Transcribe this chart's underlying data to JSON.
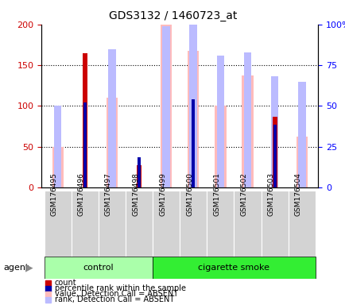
{
  "title": "GDS3132 / 1460723_at",
  "samples": [
    "GSM176495",
    "GSM176496",
    "GSM176497",
    "GSM176498",
    "GSM176499",
    "GSM176500",
    "GSM176501",
    "GSM176502",
    "GSM176503",
    "GSM176504"
  ],
  "count": [
    0,
    165,
    0,
    27,
    0,
    0,
    0,
    0,
    87,
    0
  ],
  "percentile_rank": [
    0,
    104,
    0,
    37,
    0,
    108,
    0,
    0,
    77,
    0
  ],
  "value_absent": [
    50,
    0,
    110,
    0,
    200,
    168,
    100,
    137,
    0,
    62
  ],
  "rank_absent": [
    50,
    0,
    85,
    0,
    99,
    108,
    81,
    83,
    68,
    65
  ],
  "ylim_left": [
    0,
    200
  ],
  "ylim_right": [
    0,
    100
  ],
  "yticks_left": [
    0,
    50,
    100,
    150,
    200
  ],
  "yticks_right": [
    0,
    25,
    50,
    75,
    100
  ],
  "ytick_labels_left": [
    "0",
    "50",
    "100",
    "150",
    "200"
  ],
  "ytick_labels_right": [
    "0",
    "25",
    "50",
    "75",
    "100%"
  ],
  "color_count": "#cc0000",
  "color_percentile": "#0000aa",
  "color_value_absent": "#ffbbbb",
  "color_rank_absent": "#bbbbff",
  "control_bg": "#aaffaa",
  "smoke_bg": "#33ee33",
  "n_control": 4,
  "n_total": 10
}
